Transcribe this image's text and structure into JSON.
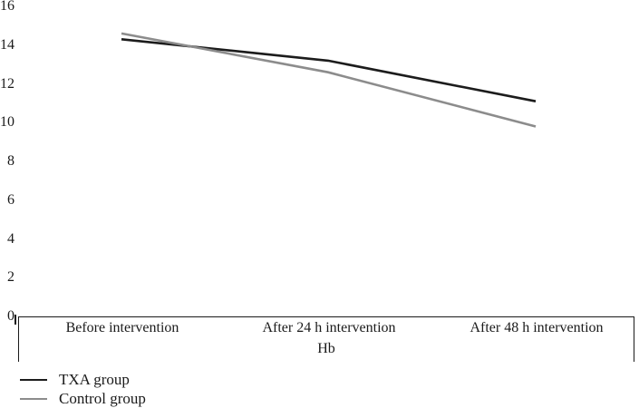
{
  "figure": {
    "background": "#ffffff",
    "text_color": "#1a1a1a",
    "axis_color": "#1a1a1a"
  },
  "chart_data": {
    "type": "line",
    "title": "",
    "categories": [
      "Before intervention",
      "After 24 h intervention",
      "After 48 h intervention"
    ],
    "series": [
      {
        "name": "TXA group",
        "color": "#1c1c1c",
        "values": [
          14.3,
          13.2,
          11.1
        ]
      },
      {
        "name": "Control group",
        "color": "#8c8c8c",
        "values": [
          14.6,
          12.6,
          9.8
        ]
      }
    ],
    "xlabel": "Hb",
    "ylabel": "",
    "ylim": [
      0,
      16
    ],
    "yticks": [
      0,
      2,
      4,
      6,
      8,
      10,
      12,
      14,
      16
    ],
    "grid": false,
    "legend_position": "bottom-left"
  }
}
